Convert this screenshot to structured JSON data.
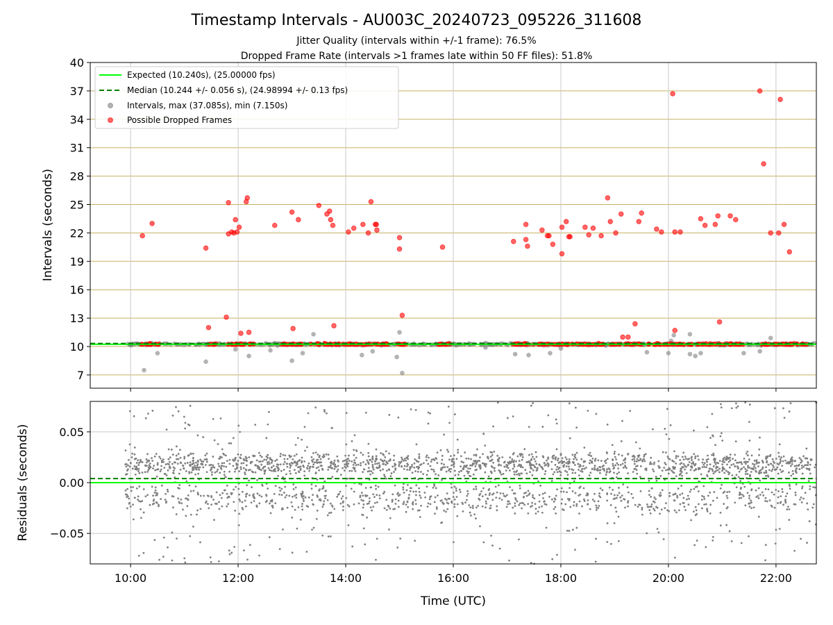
{
  "title": "Timestamp Intervals - AU003C_20240723_095226_311608",
  "subtitle_1": "Jitter Quality (intervals within +/-1 frame): 76.5%",
  "subtitle_2": "Dropped Frame Rate (intervals >1 frames late within 50 FF files): 51.8%",
  "colors": {
    "expected": "#00ff00",
    "median": "#008000",
    "intervals": "#808080",
    "dropped": "#ff0000",
    "hgrid": "#c8b060",
    "vgrid": "#c8c8c8"
  },
  "chart_data": [
    {
      "type": "scatter",
      "xlabel": "",
      "ylabel": "Intervals (seconds)",
      "x_units": "hours (UTC)",
      "xlim": [
        9.25,
        22.75
      ],
      "ylim": [
        5.6,
        40
      ],
      "x_ticks": [
        10,
        12,
        14,
        16,
        18,
        20,
        22
      ],
      "y_ticks": [
        7,
        10,
        13,
        16,
        19,
        22,
        25,
        28,
        31,
        34,
        37,
        40
      ],
      "y_tick_labels": [
        "7",
        "10",
        "13",
        "16",
        "19",
        "22",
        "25",
        "28",
        "31",
        "34",
        "37",
        "40"
      ],
      "grid": {
        "horizontal": true,
        "vertical": true
      },
      "legend_position": "top-left",
      "lines": [
        {
          "name": "Expected (10.240s), (25.00000 fps)",
          "y": 10.24,
          "style": "solid"
        },
        {
          "name": "Median (10.244 +/- 0.056 s), (24.98994 +/- 0.13 fps)",
          "y": 10.244,
          "style": "dashed"
        }
      ],
      "series": [
        {
          "name": "Intervals, max (37.085s), min (7.150s)",
          "description": "dense band near 10.24 s from about 09:53 to 22:45 UTC",
          "band_center": 10.24,
          "points": [
            [
              10.25,
              7.5
            ],
            [
              11.4,
              8.4
            ],
            [
              13.0,
              8.5
            ],
            [
              13.2,
              9.3
            ],
            [
              14.3,
              9.1
            ],
            [
              14.95,
              8.9
            ],
            [
              15.05,
              7.2
            ],
            [
              15.0,
              11.5
            ],
            [
              13.4,
              11.3
            ],
            [
              10.5,
              9.3
            ],
            [
              12.2,
              9.0
            ],
            [
              17.4,
              9.1
            ],
            [
              17.15,
              9.2
            ],
            [
              17.8,
              9.3
            ],
            [
              20.0,
              9.3
            ],
            [
              20.4,
              9.2
            ],
            [
              20.5,
              9.0
            ],
            [
              20.6,
              9.3
            ],
            [
              21.4,
              9.3
            ],
            [
              21.7,
              9.5
            ],
            [
              20.05,
              10.6
            ],
            [
              20.4,
              11.3
            ],
            [
              20.1,
              11.2
            ],
            [
              18.0,
              9.8
            ],
            [
              14.5,
              9.5
            ],
            [
              12.6,
              9.6
            ],
            [
              21.9,
              10.9
            ],
            [
              11.95,
              9.7
            ],
            [
              16.6,
              9.9
            ],
            [
              19.6,
              9.4
            ]
          ]
        },
        {
          "name": "Possible Dropped Frames",
          "points": [
            [
              10.22,
              21.7
            ],
            [
              10.4,
              23.0
            ],
            [
              11.4,
              20.4
            ],
            [
              11.45,
              12.0
            ],
            [
              11.78,
              13.1
            ],
            [
              11.82,
              25.2
            ],
            [
              11.82,
              21.9
            ],
            [
              11.88,
              22.1
            ],
            [
              11.92,
              22.0
            ],
            [
              11.95,
              23.4
            ],
            [
              11.98,
              22.1
            ],
            [
              12.02,
              22.6
            ],
            [
              12.05,
              11.4
            ],
            [
              12.15,
              25.3
            ],
            [
              12.17,
              25.7
            ],
            [
              12.2,
              11.5
            ],
            [
              12.68,
              22.8
            ],
            [
              13.02,
              11.9
            ],
            [
              13.0,
              24.2
            ],
            [
              13.12,
              23.4
            ],
            [
              13.5,
              24.9
            ],
            [
              13.65,
              24.0
            ],
            [
              13.7,
              24.3
            ],
            [
              13.72,
              23.4
            ],
            [
              13.76,
              22.8
            ],
            [
              13.78,
              12.2
            ],
            [
              14.05,
              22.1
            ],
            [
              14.15,
              22.5
            ],
            [
              14.32,
              22.9
            ],
            [
              14.42,
              22.0
            ],
            [
              14.47,
              25.3
            ],
            [
              14.55,
              22.9
            ],
            [
              14.57,
              22.9
            ],
            [
              14.58,
              22.3
            ],
            [
              15.0,
              21.5
            ],
            [
              15.0,
              20.3
            ],
            [
              15.05,
              13.3
            ],
            [
              15.8,
              20.5
            ],
            [
              17.12,
              21.1
            ],
            [
              17.35,
              22.9
            ],
            [
              17.35,
              21.3
            ],
            [
              17.38,
              20.6
            ],
            [
              17.65,
              22.3
            ],
            [
              17.75,
              21.7
            ],
            [
              17.78,
              21.7
            ],
            [
              17.85,
              20.8
            ],
            [
              18.02,
              19.8
            ],
            [
              18.02,
              22.6
            ],
            [
              18.1,
              23.2
            ],
            [
              18.15,
              21.6
            ],
            [
              18.17,
              21.6
            ],
            [
              18.45,
              22.6
            ],
            [
              18.52,
              21.8
            ],
            [
              18.6,
              22.5
            ],
            [
              18.75,
              21.7
            ],
            [
              18.87,
              25.7
            ],
            [
              18.92,
              23.2
            ],
            [
              19.02,
              22.0
            ],
            [
              19.12,
              24.0
            ],
            [
              19.15,
              11.0
            ],
            [
              19.25,
              11.0
            ],
            [
              19.38,
              12.4
            ],
            [
              19.45,
              23.2
            ],
            [
              19.5,
              24.1
            ],
            [
              19.78,
              22.4
            ],
            [
              19.87,
              22.1
            ],
            [
              20.08,
              36.7
            ],
            [
              20.12,
              22.1
            ],
            [
              20.12,
              11.7
            ],
            [
              20.22,
              22.1
            ],
            [
              20.6,
              23.5
            ],
            [
              20.68,
              22.8
            ],
            [
              20.87,
              22.9
            ],
            [
              20.92,
              23.8
            ],
            [
              20.95,
              12.6
            ],
            [
              21.15,
              23.8
            ],
            [
              21.25,
              23.4
            ],
            [
              21.7,
              37.0
            ],
            [
              21.77,
              29.3
            ],
            [
              21.9,
              22.0
            ],
            [
              22.05,
              22.0
            ],
            [
              22.08,
              36.1
            ],
            [
              22.15,
              22.9
            ],
            [
              22.25,
              20.0
            ]
          ]
        }
      ]
    },
    {
      "type": "scatter",
      "xlabel": "Time (UTC)",
      "ylabel": "Residuals (seconds)",
      "x_units": "hours (UTC)",
      "xlim": [
        9.25,
        22.75
      ],
      "ylim": [
        -0.08,
        0.08
      ],
      "x_ticks": [
        10,
        12,
        14,
        16,
        18,
        20,
        22
      ],
      "x_tick_labels": [
        "10:00",
        "12:00",
        "14:00",
        "16:00",
        "18:00",
        "20:00",
        "22:00"
      ],
      "y_ticks": [
        -0.05,
        0.0,
        0.05
      ],
      "y_tick_labels": [
        "−0.05",
        "0.00",
        "0.05"
      ],
      "grid": {
        "horizontal": true,
        "vertical": true
      },
      "lines": [
        {
          "name": "Expected",
          "y": 0.0,
          "style": "solid"
        },
        {
          "name": "Median",
          "y": 0.004,
          "style": "dashed"
        }
      ],
      "series": [
        {
          "name": "Residuals",
          "description": "grey dots spread roughly between -0.08 and 0.08 s from about 09:53 to 22:45 UTC, denser between 0.00 and 0.03",
          "band_range": [
            -0.08,
            0.08
          ]
        }
      ]
    }
  ]
}
